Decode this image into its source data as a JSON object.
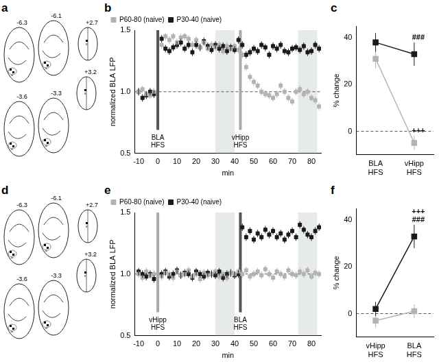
{
  "diagrams": [
    {
      "panel_label": "a",
      "sections": [
        "-6.3",
        "-6.1",
        "+2.7",
        "-3.6",
        "-3.3",
        "+3.2"
      ]
    },
    {
      "panel_label": "d",
      "sections": [
        "-6.3",
        "-6.1",
        "+2.7",
        "-3.6",
        "-3.3",
        "+3.2"
      ]
    }
  ],
  "chart_data": [
    {
      "panel_label": "b",
      "type": "scatter",
      "x_label": "min",
      "y_label": "normalized BLA LFP",
      "xlim": [
        -12,
        85
      ],
      "xticks": [
        -10,
        0,
        10,
        20,
        30,
        40,
        50,
        60,
        70,
        80
      ],
      "ylim": [
        0.5,
        1.5
      ],
      "yticks": [
        0.5,
        {
          "value": 1,
          "label": "1.0"
        },
        1.5
      ],
      "grid": false,
      "legend": "top",
      "marker": "square",
      "hline": 1,
      "shaded": [
        [
          30,
          40
        ],
        [
          73,
          83
        ]
      ],
      "events": [
        {
          "x": 0,
          "label": "BLA HFS",
          "color": "#555555"
        },
        {
          "x": 43,
          "label": "vHipp HFS",
          "color": "#aaaaaa"
        }
      ],
      "x": [
        -10,
        -8,
        -6,
        -4,
        -2,
        2,
        4,
        6,
        8,
        10,
        12,
        14,
        16,
        18,
        20,
        22,
        24,
        26,
        28,
        30,
        32,
        34,
        36,
        38,
        40,
        42,
        44,
        46,
        48,
        50,
        52,
        54,
        56,
        58,
        60,
        62,
        64,
        66,
        68,
        70,
        72,
        74,
        76,
        78,
        80,
        82,
        84
      ],
      "series": [
        {
          "name": "P60-80 (naive)",
          "color": "#b3b3b3",
          "error": 0.03,
          "values": [
            1.0,
            1.02,
            0.98,
            0.97,
            1.0,
            1.38,
            1.45,
            1.42,
            1.45,
            1.4,
            1.44,
            1.45,
            1.43,
            1.38,
            1.42,
            1.36,
            1.4,
            1.35,
            1.38,
            1.36,
            1.38,
            1.33,
            1.37,
            1.35,
            1.37,
            1.34,
            1.3,
            1.2,
            1.12,
            1.08,
            1.05,
            1.0,
            0.98,
            0.97,
            0.95,
            0.98,
            1.05,
            1.0,
            0.95,
            0.92,
            1.0,
            1.02,
            0.98,
            1.0,
            0.95,
            0.93,
            0.88
          ]
        },
        {
          "name": "P30-40 (naive)",
          "color": "#1a1a1a",
          "error": 0.03,
          "values": [
            1.0,
            0.95,
            0.97,
            1.0,
            0.98,
            1.43,
            1.35,
            1.33,
            1.36,
            1.38,
            1.4,
            1.35,
            1.38,
            1.32,
            1.38,
            1.36,
            1.41,
            1.37,
            1.34,
            1.38,
            1.35,
            1.37,
            1.33,
            1.36,
            1.34,
            1.42,
            1.38,
            1.3,
            1.32,
            1.35,
            1.33,
            1.38,
            1.36,
            1.3,
            1.37,
            1.35,
            1.38,
            1.33,
            1.32,
            1.35,
            1.36,
            1.34,
            1.37,
            1.32,
            1.33,
            1.38,
            1.35
          ]
        }
      ]
    },
    {
      "panel_label": "c",
      "type": "line",
      "y_label": "% change",
      "categories": [
        "BLA HFS",
        "vHipp HFS"
      ],
      "ylim": [
        -10,
        45
      ],
      "yticks": [
        0,
        20,
        40
      ],
      "grid": false,
      "marker": "square",
      "hline": 0,
      "series": [
        {
          "name": "P60-80 (naive)",
          "color": "#b3b3b3",
          "values": [
            31,
            -5
          ],
          "errors": [
            4,
            3
          ]
        },
        {
          "name": "P30-40 (naive)",
          "color": "#1a1a1a",
          "values": [
            38,
            33
          ],
          "errors": [
            4,
            5
          ]
        }
      ],
      "annotations": [
        {
          "text": "###",
          "category": "vHipp HFS",
          "series": "P30-40 (naive)"
        },
        {
          "text": "+++",
          "category": "vHipp HFS",
          "series": "P60-80 (naive)"
        }
      ]
    },
    {
      "panel_label": "e",
      "type": "scatter",
      "x_label": "min",
      "y_label": "normalized BLA LFP",
      "xlim": [
        -12,
        85
      ],
      "xticks": [
        -10,
        0,
        10,
        20,
        30,
        40,
        50,
        60,
        70,
        80
      ],
      "ylim": [
        0.5,
        1.5
      ],
      "yticks": [
        0.5,
        {
          "value": 1,
          "label": "1.0"
        },
        1.5
      ],
      "grid": false,
      "legend": "top",
      "marker": "square",
      "hline": 1,
      "shaded": [
        [
          30,
          40
        ],
        [
          73,
          83
        ]
      ],
      "events": [
        {
          "x": 0,
          "label": "vHipp HFS",
          "color": "#aaaaaa"
        },
        {
          "x": 43,
          "label": "BLA HFS",
          "color": "#555555"
        }
      ],
      "x": [
        -10,
        -8,
        -6,
        -4,
        -2,
        2,
        4,
        6,
        8,
        10,
        12,
        14,
        16,
        18,
        20,
        22,
        24,
        26,
        28,
        30,
        32,
        34,
        36,
        38,
        40,
        42,
        44,
        46,
        48,
        50,
        52,
        54,
        56,
        58,
        60,
        62,
        64,
        66,
        68,
        70,
        72,
        74,
        76,
        78,
        80,
        82,
        84
      ],
      "series": [
        {
          "name": "P60-80 (naive)",
          "color": "#b3b3b3",
          "error": 0.03,
          "values": [
            1.0,
            0.97,
            1.02,
            0.99,
            1.0,
            0.98,
            1.01,
            1.0,
            0.97,
            1.02,
            0.99,
            1.0,
            1.03,
            0.98,
            1.0,
            0.96,
            1.01,
            0.99,
            1.0,
            1.02,
            0.98,
            1.0,
            0.97,
            1.01,
            1.0,
            1.02,
            1.0,
            1.03,
            0.98,
            1.0,
            1.02,
            0.99,
            1.04,
            1.0,
            0.97,
            1.02,
            1.0,
            0.98,
            1.03,
            1.0,
            0.99,
            1.02,
            1.0,
            1.03,
            0.98,
            1.01,
            1.0
          ]
        },
        {
          "name": "P30-40 (naive)",
          "color": "#1a1a1a",
          "error": 0.03,
          "values": [
            1.02,
            1.0,
            0.98,
            1.0,
            0.96,
            1.0,
            1.02,
            0.98,
            1.0,
            1.03,
            0.99,
            1.01,
            1.0,
            0.97,
            1.02,
            1.0,
            0.98,
            1.01,
            1.0,
            0.99,
            1.02,
            0.97,
            1.0,
            1.01,
            0.99,
            1.0,
            1.38,
            1.3,
            1.35,
            1.28,
            1.33,
            1.3,
            1.36,
            1.32,
            1.35,
            1.3,
            1.33,
            1.28,
            1.32,
            1.35,
            1.3,
            1.4,
            1.36,
            1.32,
            1.3,
            1.35,
            1.38
          ]
        }
      ]
    },
    {
      "panel_label": "f",
      "type": "line",
      "y_label": "% change",
      "categories": [
        "vHipp HFS",
        "BLA HFS"
      ],
      "ylim": [
        -10,
        45
      ],
      "yticks": [
        0,
        20,
        40
      ],
      "grid": false,
      "marker": "square",
      "hline": 0,
      "series": [
        {
          "name": "P60-80 (naive)",
          "color": "#b3b3b3",
          "values": [
            -3,
            1
          ],
          "errors": [
            3,
            3
          ]
        },
        {
          "name": "P30-40 (naive)",
          "color": "#1a1a1a",
          "values": [
            2,
            33
          ],
          "errors": [
            3,
            5
          ]
        }
      ],
      "annotations": [
        {
          "text": "###",
          "category": "BLA HFS",
          "series": "P30-40 (naive)"
        },
        {
          "text": "+++",
          "category": "BLA HFS",
          "series": "P30-40 (naive)"
        }
      ]
    }
  ]
}
